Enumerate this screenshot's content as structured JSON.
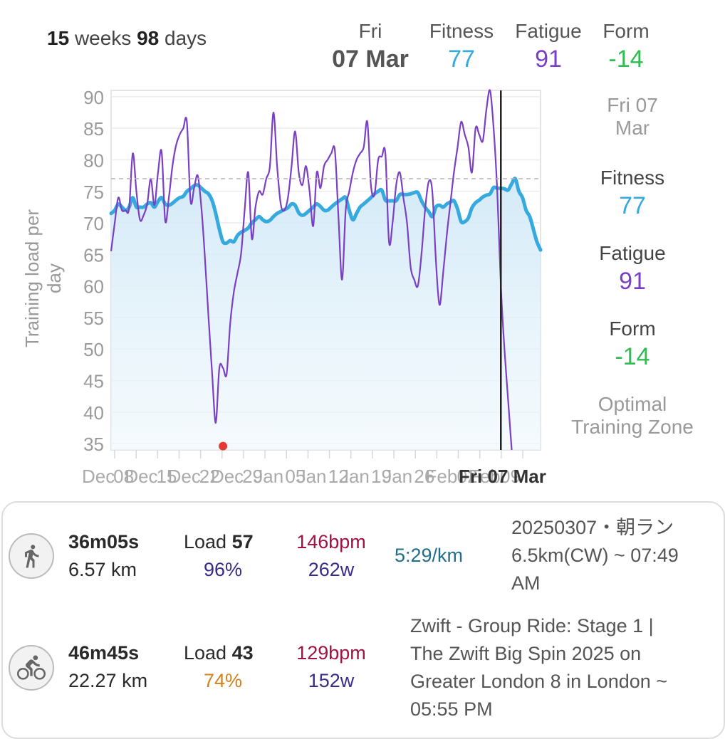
{
  "header": {
    "range_weeks": "15",
    "range_weeks_unit": "weeks",
    "range_days": "98",
    "range_days_unit": "days",
    "day": "Fri",
    "date": "07 Mar",
    "fitness_label": "Fitness",
    "fitness_value": "77",
    "fatigue_label": "Fatigue",
    "fatigue_value": "91",
    "form_label": "Form",
    "form_value": "-14"
  },
  "side_panel": {
    "date": "Fri 07 Mar",
    "fitness_label": "Fitness",
    "fitness_value": "77",
    "fatigue_label": "Fatigue",
    "fatigue_value": "91",
    "form_label": "Form",
    "form_value": "-14",
    "zone_label": "Optimal Training Zone"
  },
  "colors": {
    "fitness": "#36a9df",
    "fatigue": "#7a3fc4",
    "form": "#2ebd4f",
    "hr": "#a0123f",
    "power": "#3a2a8a",
    "pace": "#1f6e8c",
    "pct_good": "#3a2a8a",
    "pct_low": "#d4801c"
  },
  "chart_data": {
    "type": "line",
    "ylabel": "Training load per day",
    "ylim": [
      34,
      91
    ],
    "yticks": [
      "90",
      "85",
      "80",
      "75",
      "70",
      "65",
      "60",
      "55",
      "50",
      "45",
      "40",
      "35"
    ],
    "xtick_labels": [
      "Dec",
      "08",
      "Dec",
      "15",
      "Dec",
      "22",
      "Dec",
      "29",
      "Jan",
      "05",
      "Jan",
      "12",
      "Jan",
      "19",
      "Jan",
      "26",
      "Feb",
      "02",
      "Feb",
      "09",
      "Fri 07 Mar"
    ],
    "selected_label": "Fri 07 Mar",
    "reference_line": 77,
    "series": [
      {
        "name": "Fitness",
        "values": [
          71.5,
          72,
          73,
          72.5,
          72,
          72.5,
          74,
          72.5,
          72.5,
          72.5,
          73,
          73.2,
          72.5,
          73.4,
          74,
          73,
          72.8,
          73.1,
          73.6,
          74,
          74.2,
          75,
          75.4,
          75.9,
          76,
          75.5,
          75,
          74.6,
          73.5,
          71.5,
          69,
          67,
          66.8,
          67.2,
          67,
          68,
          68.5,
          68.8,
          69.2,
          70,
          70.5,
          71,
          70.5,
          70.2,
          70.4,
          71,
          71.5,
          71.8,
          72.1,
          72.4,
          73,
          72.8,
          71.6,
          71.2,
          71.5,
          72,
          72.5,
          73,
          72.6,
          72,
          72,
          72.5,
          73,
          73.4,
          73.8,
          74,
          72,
          70.5,
          71.5,
          72.5,
          73,
          73.5,
          74,
          74.6,
          75,
          75.2,
          73.6,
          73.5,
          73.5,
          73.5,
          74.5,
          74.5,
          74.5,
          74.6,
          74.8,
          74.8,
          73.5,
          72.5,
          71.8,
          71,
          72.5,
          72.8,
          72.5,
          73,
          73.3,
          73.5,
          72.2,
          70.2,
          70.2,
          70.8,
          72.4,
          73.2,
          73.6,
          74.1,
          74.4,
          74.6,
          75.6,
          75.5,
          75.5,
          75.4,
          75.2,
          76.2,
          77,
          75,
          74,
          72,
          71,
          69,
          67,
          65.7
        ]
      },
      {
        "name": "Fatigue",
        "values": [
          65.5,
          70,
          74,
          72,
          72,
          72.3,
          81,
          75,
          70.5,
          71.2,
          73,
          77,
          72.8,
          78,
          81.3,
          70.3,
          74,
          79,
          82.3,
          84,
          85,
          86,
          73.5,
          75.5,
          77.5,
          72.5,
          64.5,
          55,
          46,
          38.3,
          47,
          47,
          46,
          54,
          59,
          62,
          65,
          72,
          78,
          67.5,
          72.5,
          75,
          74.5,
          77,
          79,
          87.5,
          79,
          73,
          72,
          74,
          79,
          84.5,
          78,
          76,
          79,
          75,
          69.5,
          78,
          75.5,
          79,
          80,
          81,
          81.5,
          71,
          61,
          72,
          75,
          78,
          80,
          81,
          82,
          86,
          76,
          74.5,
          80,
          80.5,
          81,
          67,
          70,
          76,
          78,
          74,
          70,
          63,
          61,
          60,
          65,
          72,
          76.5,
          75,
          64,
          57,
          62,
          68,
          73,
          78,
          82,
          86,
          84,
          82,
          78,
          85,
          84,
          83,
          88,
          91,
          85,
          75,
          60,
          50,
          42,
          34
        ]
      }
    ],
    "marker": {
      "x_index": 31,
      "y": 34.6,
      "color": "#e53935"
    },
    "selected_index": 108
  },
  "activities": [
    {
      "icon": "running-icon",
      "duration": "36m05s",
      "distance": "6.57 km",
      "load_label": "Load",
      "load_value": "57",
      "percent": "96%",
      "hr": "146bpm",
      "power": "262w",
      "pace": "5:29/km",
      "description_lines": [
        "20250307・朝ラン",
        "6.5km(CW) ~ 07:49",
        "AM"
      ]
    },
    {
      "icon": "cycling-icon",
      "duration": "46m45s",
      "distance": "22.27 km",
      "load_label": "Load",
      "load_value": "43",
      "percent": "74%",
      "hr": "129bpm",
      "power": "152w",
      "pace": "",
      "description_lines": [
        "Zwift - Group Ride: Stage 1 |",
        "The Zwift Big Spin 2025 on",
        "Greater London 8 in London ~",
        "05:55 PM"
      ]
    }
  ]
}
